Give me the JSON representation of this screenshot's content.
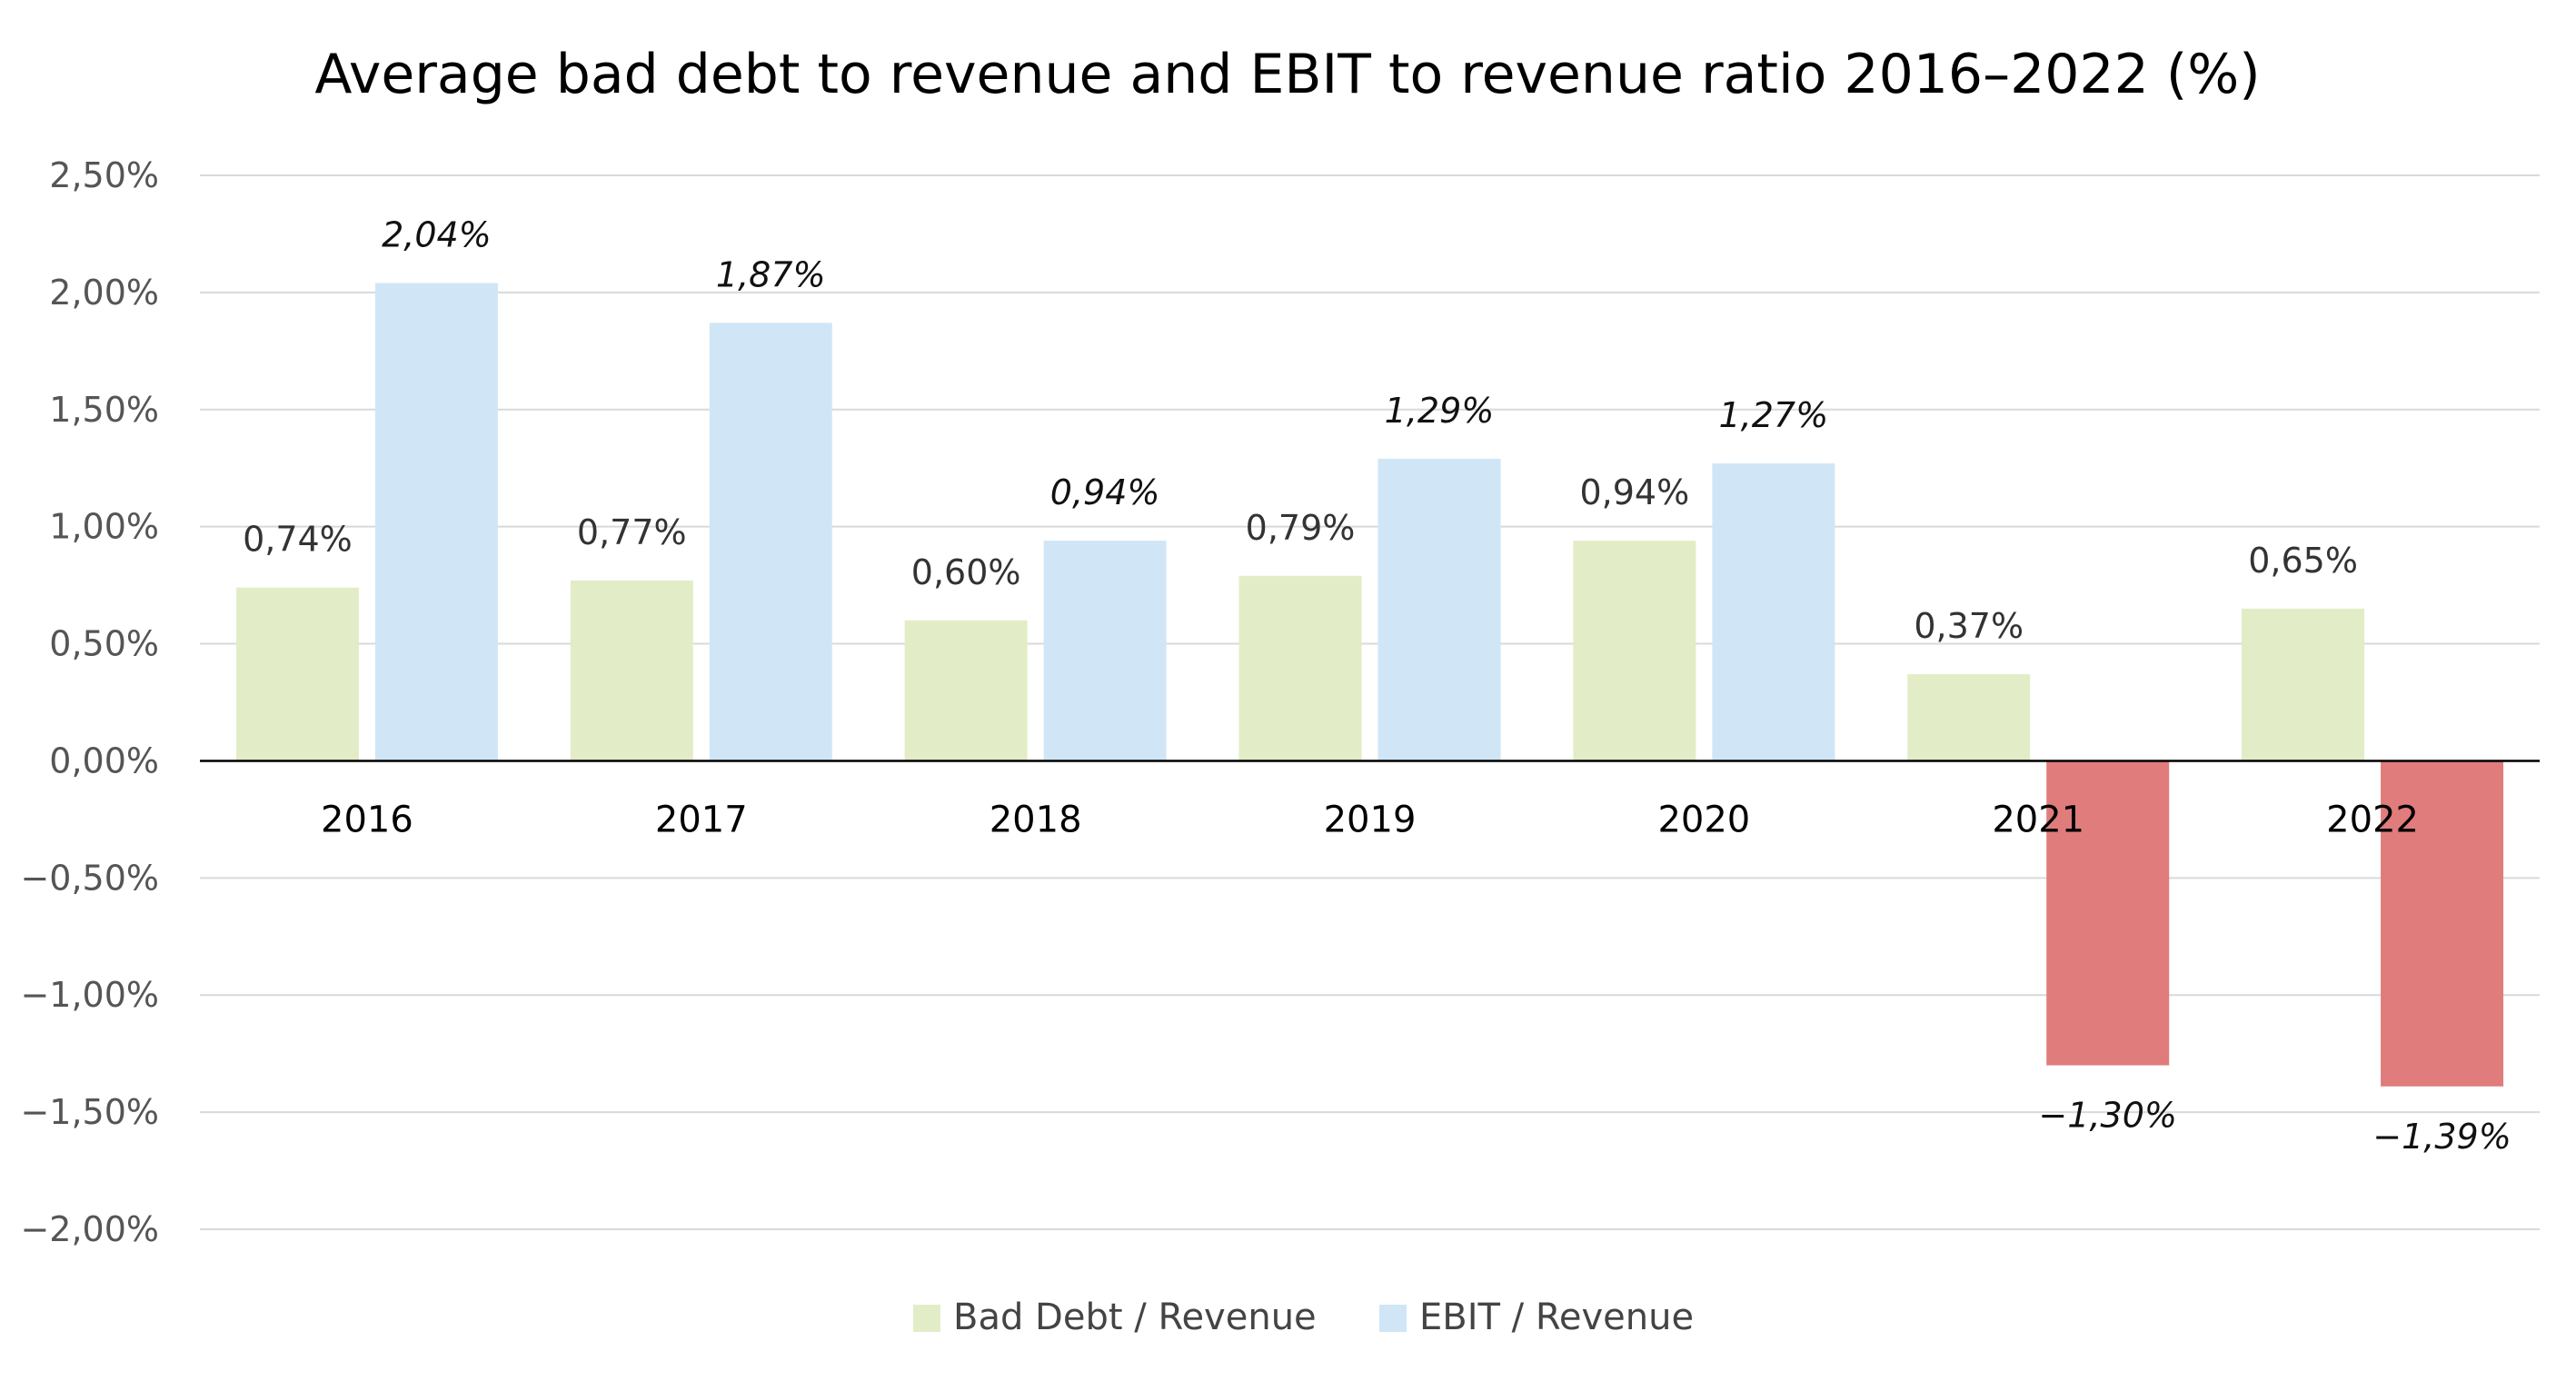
{
  "chart_data": {
    "type": "bar",
    "title": "Average bad debt to revenue and EBIT to revenue ratio 2016–2022 (%)",
    "categories": [
      "2016",
      "2017",
      "2018",
      "2019",
      "2020",
      "2021",
      "2022"
    ],
    "series": [
      {
        "name": "Bad Debt / Revenue",
        "color": "#e2edc7",
        "values": [
          0.74,
          0.77,
          0.6,
          0.79,
          0.94,
          0.37,
          0.65
        ],
        "labels": [
          "0,74%",
          "0,77%",
          "0,60%",
          "0,79%",
          "0,94%",
          "0,37%",
          "0,65%"
        ]
      },
      {
        "name": "EBIT / Revenue",
        "color": "#d0e6f6",
        "negative_color": "#e07c7c",
        "values": [
          2.04,
          1.87,
          0.94,
          1.29,
          1.27,
          -1.3,
          -1.39
        ],
        "labels": [
          "2,04%",
          "1,87%",
          "0,94%",
          "1,29%",
          "1,27%",
          "−1,30%",
          "−1,39%"
        ]
      }
    ],
    "ylim": [
      -2.0,
      2.5
    ],
    "yticks": [
      2.5,
      2.0,
      1.5,
      1.0,
      0.5,
      0.0,
      -0.5,
      -1.0,
      -1.5,
      -2.0
    ],
    "ytick_labels": [
      "2,50%",
      "2,00%",
      "1,50%",
      "1,00%",
      "0,50%",
      "0,00%",
      "−0,50%",
      "−1,00%",
      "−1,50%",
      "−2,00%"
    ],
    "grid": true,
    "legend_position": "bottom-center"
  }
}
